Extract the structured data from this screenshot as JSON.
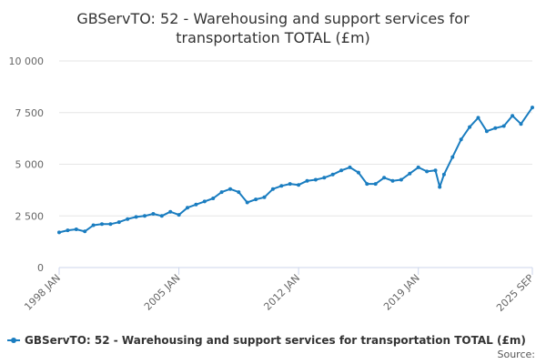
{
  "chart_data": {
    "type": "line",
    "title_lines": [
      "GBServTO: 52 - Warehousing and support services for",
      "transportation TOTAL (£m)"
    ],
    "x_ticks": [
      "1998 JAN",
      "2005 JAN",
      "2012 JAN",
      "2019 JAN",
      "2025 SEP"
    ],
    "y_ticks": [
      "0",
      "2 500",
      "5 000",
      "7 500",
      "10 000"
    ],
    "y_tick_values": [
      0,
      2500,
      5000,
      7500,
      10000
    ],
    "ylim": [
      0,
      10000
    ],
    "xlim": [
      "1998-01",
      "2025-09"
    ],
    "grid": "horizontal",
    "legend_position": "bottom",
    "series": [
      {
        "name": "GBServTO: 52 - Warehousing and support services for transportation TOTAL (£m)",
        "color": "#1a7dc0",
        "x": [
          "1998-01",
          "1998-07",
          "1999-01",
          "1999-07",
          "2000-01",
          "2000-07",
          "2001-01",
          "2001-07",
          "2002-01",
          "2002-07",
          "2003-01",
          "2003-07",
          "2004-01",
          "2004-07",
          "2005-01",
          "2005-07",
          "2006-01",
          "2006-07",
          "2007-01",
          "2007-07",
          "2008-01",
          "2008-07",
          "2009-01",
          "2009-07",
          "2010-01",
          "2010-07",
          "2011-01",
          "2011-07",
          "2012-01",
          "2012-07",
          "2013-01",
          "2013-07",
          "2014-01",
          "2014-07",
          "2015-01",
          "2015-07",
          "2016-01",
          "2016-07",
          "2017-01",
          "2017-07",
          "2018-01",
          "2018-07",
          "2019-01",
          "2019-07",
          "2020-01",
          "2020-04",
          "2020-07",
          "2021-01",
          "2021-07",
          "2022-01",
          "2022-07",
          "2023-01",
          "2023-07",
          "2024-01",
          "2024-07",
          "2025-01",
          "2025-09"
        ],
        "values": [
          1700,
          1800,
          1850,
          1750,
          2050,
          2100,
          2100,
          2200,
          2350,
          2450,
          2500,
          2600,
          2500,
          2700,
          2550,
          2900,
          3050,
          3200,
          3350,
          3650,
          3800,
          3650,
          3150,
          3300,
          3400,
          3800,
          3950,
          4050,
          4000,
          4200,
          4250,
          4350,
          4500,
          4700,
          4850,
          4600,
          4050,
          4050,
          4350,
          4200,
          4250,
          4550,
          4850,
          4650,
          4700,
          3900,
          4500,
          5350,
          6200,
          6800,
          7250,
          6600,
          6750,
          6850,
          7350,
          6950,
          7750
        ]
      }
    ]
  },
  "footer": {
    "source_label": "Source:"
  },
  "colors": {
    "series_line": "#1a7dc0",
    "grid": "#e6e6e6",
    "axis": "#ccd6eb"
  }
}
